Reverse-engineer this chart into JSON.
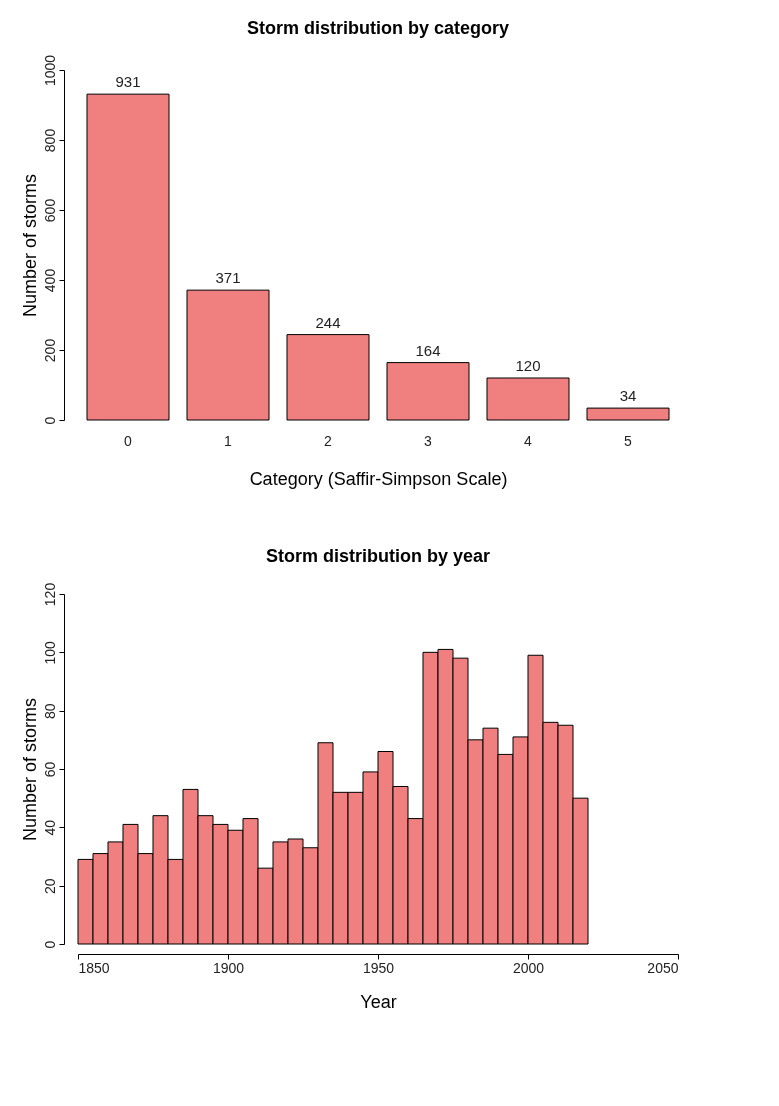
{
  "chart_data": [
    {
      "type": "bar",
      "title": "Storm distribution by category",
      "xlabel": "Category (Saffir-Simpson Scale)",
      "ylabel": "Number of storms",
      "categories": [
        "0",
        "1",
        "2",
        "3",
        "4",
        "5"
      ],
      "values": [
        931,
        371,
        244,
        164,
        120,
        34
      ],
      "color": "#f08080",
      "ylim": [
        0,
        1000
      ],
      "yticks": [
        0,
        200,
        400,
        600,
        800,
        1000
      ],
      "data_labels": true
    },
    {
      "type": "histogram",
      "title": "Storm distribution by year",
      "xlabel": "Year",
      "ylabel": "Number of storms",
      "bins": [
        1850,
        1855,
        1860,
        1865,
        1870,
        1875,
        1880,
        1885,
        1890,
        1895,
        1900,
        1905,
        1910,
        1915,
        1920,
        1925,
        1930,
        1935,
        1940,
        1945,
        1950,
        1955,
        1960,
        1965,
        1970,
        1975,
        1980,
        1985,
        1990,
        1995,
        2000,
        2005,
        2010,
        2015,
        2020
      ],
      "values": [
        29,
        31,
        35,
        41,
        31,
        44,
        29,
        53,
        44,
        41,
        39,
        43,
        26,
        35,
        36,
        33,
        69,
        52,
        52,
        59,
        66,
        54,
        43,
        100,
        101,
        98,
        70,
        74,
        65,
        71,
        99,
        76,
        75,
        50
      ],
      "color": "#f08080",
      "xlim": [
        1850,
        2050
      ],
      "xticks": [
        1850,
        1900,
        1950,
        2000,
        2050
      ],
      "ylim": [
        0,
        120
      ],
      "yticks": [
        0,
        20,
        40,
        60,
        80,
        100,
        120
      ]
    }
  ]
}
